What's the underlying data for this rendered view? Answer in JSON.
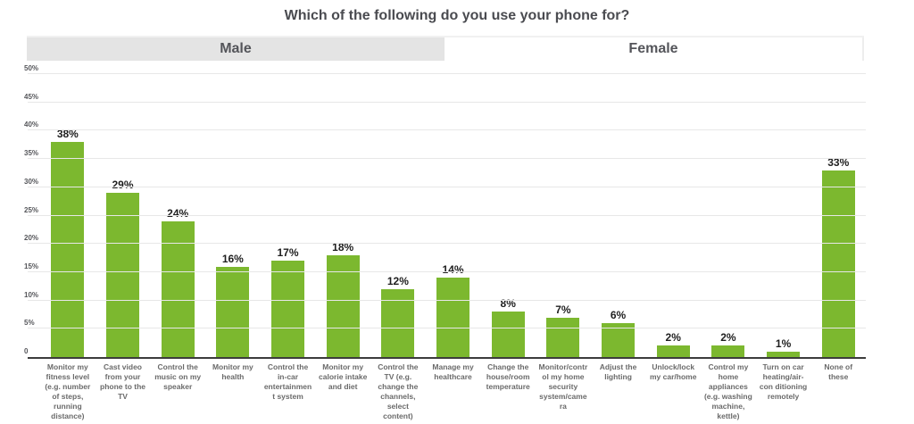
{
  "page": {
    "title": "Which of the following do you use your phone for?"
  },
  "tabs": {
    "male": "Male",
    "female": "Female",
    "selected": "Male"
  },
  "colors": {
    "bar": "#7cb82f",
    "selected_tab_bg": "#e4e4e4",
    "gridline": "#e7e7e7",
    "axis_line": "#3c3c3c"
  },
  "chart_data": {
    "type": "bar",
    "title": "Which of the following do you use your phone for?",
    "series_label": "Male",
    "categories": [
      "Monitor my fitness level (e.g. number of steps, running distance)",
      "Cast video from your phone to the TV",
      "Control the music on my speaker",
      "Monitor my health",
      "Control the in-car entertainment system",
      "Monitor my calorie intake and diet",
      "Control the TV (e.g. change the channels, select content)",
      "Manage my healthcare",
      "Change the house/room temperature",
      "Monitor/control my home security system/camera",
      "Adjust the lighting",
      "Unlock/lock my car/home",
      "Control my home appliances (e.g. washing machine, kettle)",
      "Turn on car heating/air-con ditioning remotely",
      "None of these"
    ],
    "values": [
      38,
      29,
      24,
      16,
      17,
      18,
      12,
      14,
      8,
      7,
      6,
      2,
      2,
      1,
      33
    ],
    "value_labels": [
      "38%",
      "29%",
      "24%",
      "16%",
      "17%",
      "18%",
      "12%",
      "14%",
      "8%",
      "7%",
      "6%",
      "2%",
      "2%",
      "1%",
      "33%"
    ],
    "yticks": [
      {
        "value": 50,
        "label": "50%"
      },
      {
        "value": 45,
        "label": "45%"
      },
      {
        "value": 40,
        "label": "40%"
      },
      {
        "value": 35,
        "label": "35%"
      },
      {
        "value": 30,
        "label": "30%"
      },
      {
        "value": 25,
        "label": "25%"
      },
      {
        "value": 20,
        "label": "20%"
      },
      {
        "value": 15,
        "label": "15%"
      },
      {
        "value": 10,
        "label": "10%"
      },
      {
        "value": 5,
        "label": "5%"
      },
      {
        "value": 0,
        "label": "0"
      }
    ],
    "ylim": [
      0,
      50
    ],
    "xlabel": "",
    "ylabel": "",
    "grid": true,
    "legend_position": "tabs-top"
  }
}
